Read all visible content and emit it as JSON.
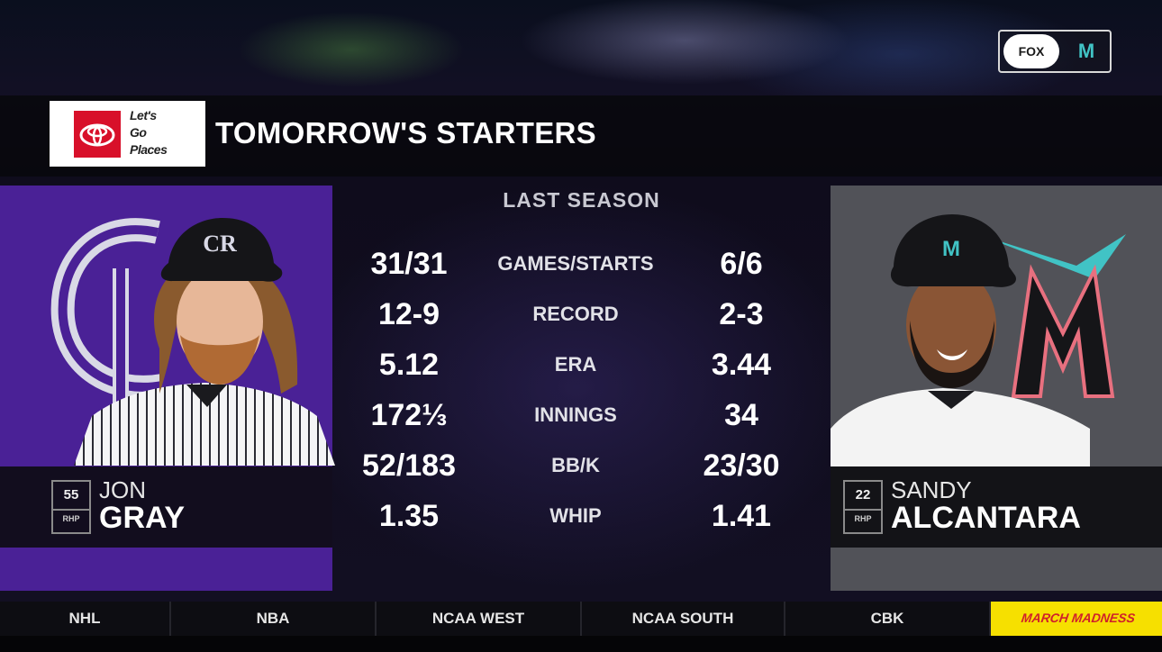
{
  "network": {
    "logo_text": "FOX",
    "team_bug": "M"
  },
  "sponsor": {
    "line1": "Let's",
    "line2": "Go",
    "line3": "Places"
  },
  "title": "TOMORROW'S STARTERS",
  "season_label": "LAST SEASON",
  "left_pitcher": {
    "number": "55",
    "position": "RHP",
    "first_name": "JON",
    "last_name": "GRAY",
    "team_logo_text": "CR",
    "panel_color": "#4a2196"
  },
  "right_pitcher": {
    "number": "22",
    "position": "RHP",
    "first_name": "SANDY",
    "last_name": "ALCANTARA",
    "team_logo_text": "M",
    "panel_color": "#515258"
  },
  "stats": [
    {
      "label": "GAMES/STARTS",
      "left": "31/31",
      "right": "6/6"
    },
    {
      "label": "RECORD",
      "left": "12-9",
      "right": "2-3"
    },
    {
      "label": "ERA",
      "left": "5.12",
      "right": "3.44"
    },
    {
      "label": "INNINGS",
      "left": "172⅓",
      "right": "34"
    },
    {
      "label": "BB/K",
      "left": "52/183",
      "right": "23/30"
    },
    {
      "label": "WHIP",
      "left": "1.35",
      "right": "1.41"
    }
  ],
  "ticker": [
    "NHL",
    "NBA",
    "NCAA WEST",
    "NCAA SOUTH",
    "CBK"
  ],
  "ticker_promo": "MARCH MADNESS",
  "colors": {
    "promo_yellow": "#f6e000",
    "toyota_red": "#d8102a",
    "marlins_teal": "#41c3c5"
  }
}
